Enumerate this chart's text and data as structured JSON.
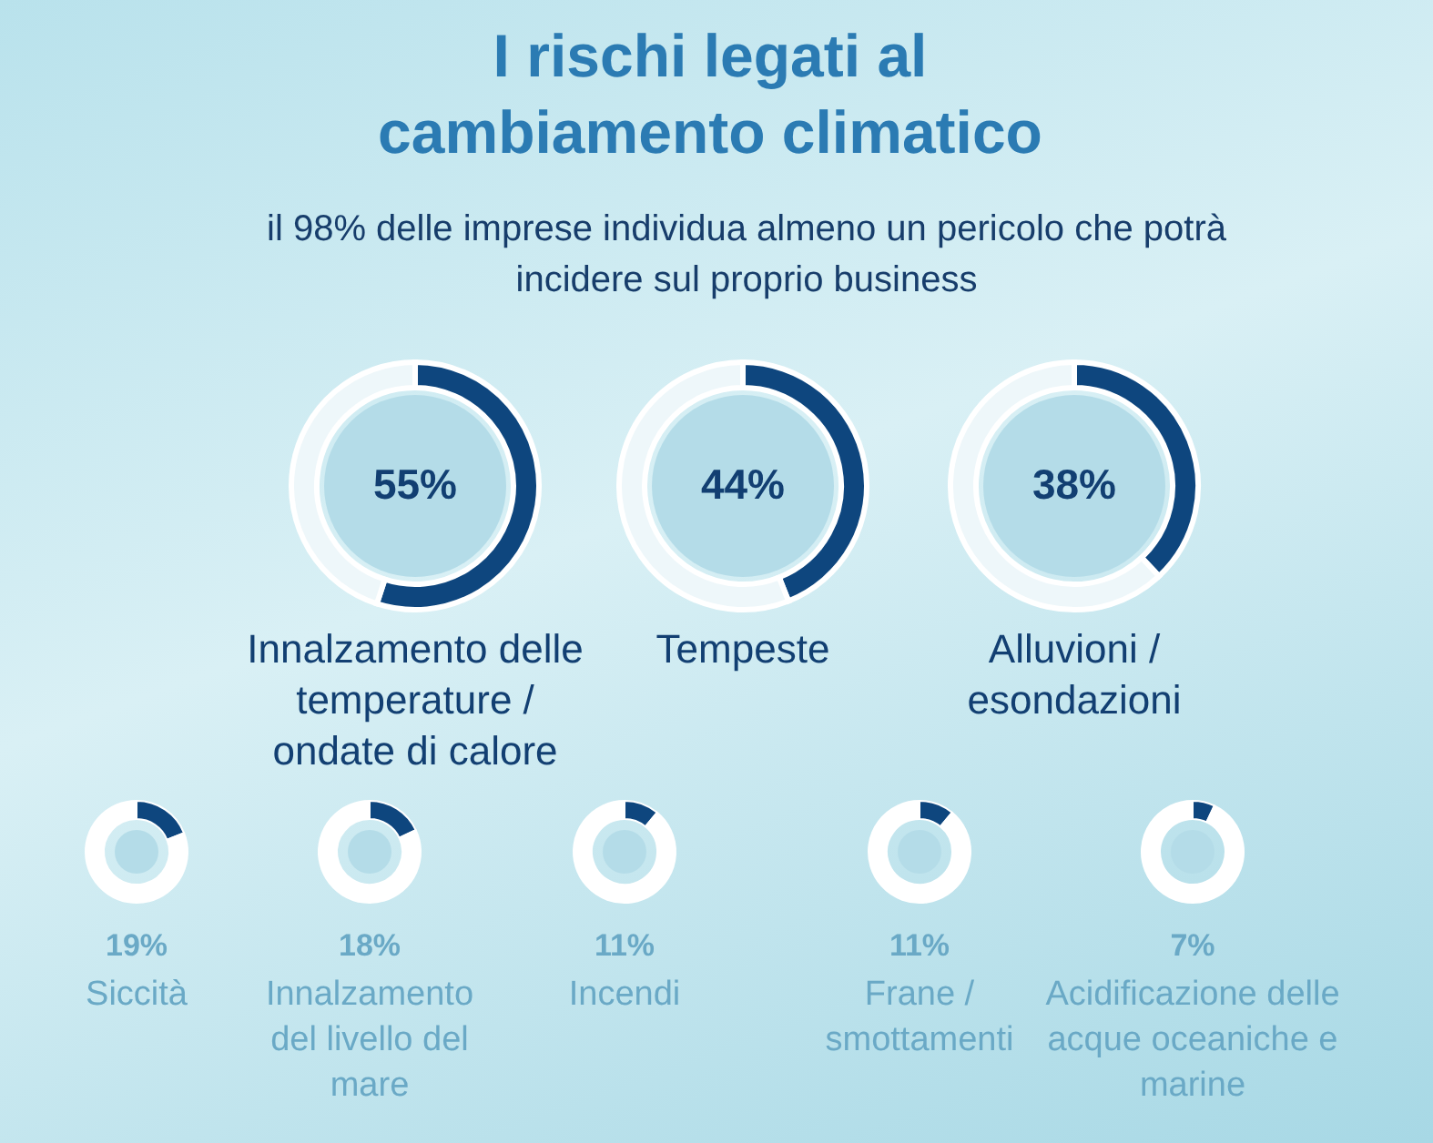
{
  "chart_data": [
    {
      "type": "donut",
      "title": "I rischi legati al cambiamento climatico",
      "subtitle": "il 98% delle imprese individua almeno un pericolo che potrà incidere sul proprio business",
      "annotations": [
        "55%",
        "Innalzamento delle temperature / ondate di calore"
      ],
      "categories": [
        null,
        null
      ],
      "values": [
        55,
        45
      ],
      "colors": [
        "#0e467e",
        "#eef7fa"
      ]
    },
    {
      "type": "donut",
      "annotations": [
        "44%",
        "Tempeste"
      ],
      "categories": [
        null,
        null
      ],
      "values": [
        44,
        56
      ],
      "colors": [
        "#0e467e",
        "#eef7fa"
      ]
    },
    {
      "type": "donut",
      "annotations": [
        "38%",
        "Alluvioni / esondazioni"
      ],
      "categories": [
        null,
        null
      ],
      "values": [
        38,
        62
      ],
      "colors": [
        "#0e467e",
        "#eef7fa"
      ]
    },
    {
      "type": "donut",
      "annotations": [
        "19%",
        "Siccità"
      ],
      "categories": [
        null,
        null
      ],
      "values": [
        19,
        81
      ],
      "colors": [
        "#0e467e",
        "#ffffff"
      ]
    },
    {
      "type": "donut",
      "annotations": [
        "18%",
        "Innalzamento del livello del mare"
      ],
      "categories": [
        null,
        null
      ],
      "values": [
        18,
        82
      ],
      "colors": [
        "#0e467e",
        "#ffffff"
      ]
    },
    {
      "type": "donut",
      "annotations": [
        "11%",
        "Incendi"
      ],
      "categories": [
        null,
        null
      ],
      "values": [
        11,
        89
      ],
      "colors": [
        "#0e467e",
        "#ffffff"
      ]
    },
    {
      "type": "donut",
      "annotations": [
        "11%",
        "Frane / smottamenti"
      ],
      "categories": [
        null,
        null
      ],
      "values": [
        11,
        89
      ],
      "colors": [
        "#0e467e",
        "#ffffff"
      ]
    },
    {
      "type": "donut",
      "annotations": [
        "7%",
        "Acidificazione delle acque oceaniche e marine"
      ],
      "categories": [
        null,
        null
      ],
      "values": [
        7,
        93
      ],
      "colors": [
        "#0e467e",
        "#ffffff"
      ]
    }
  ]
}
